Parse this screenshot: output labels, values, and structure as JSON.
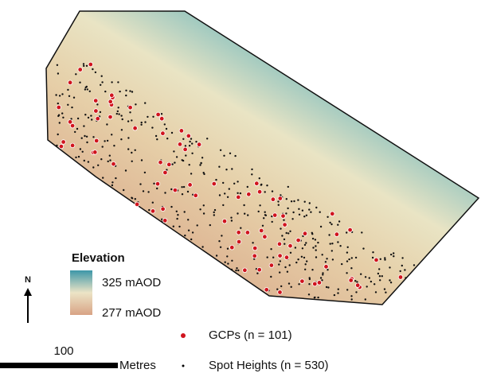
{
  "legend": {
    "title": "Elevation",
    "high": "325 mAOD",
    "low": "277 mAOD",
    "gcps": "GCPs (n = 101)",
    "spot_heights": "Spot Heights (n = 530)"
  },
  "north": "N",
  "scale": {
    "distance": "100",
    "unit": "Metres"
  }
}
